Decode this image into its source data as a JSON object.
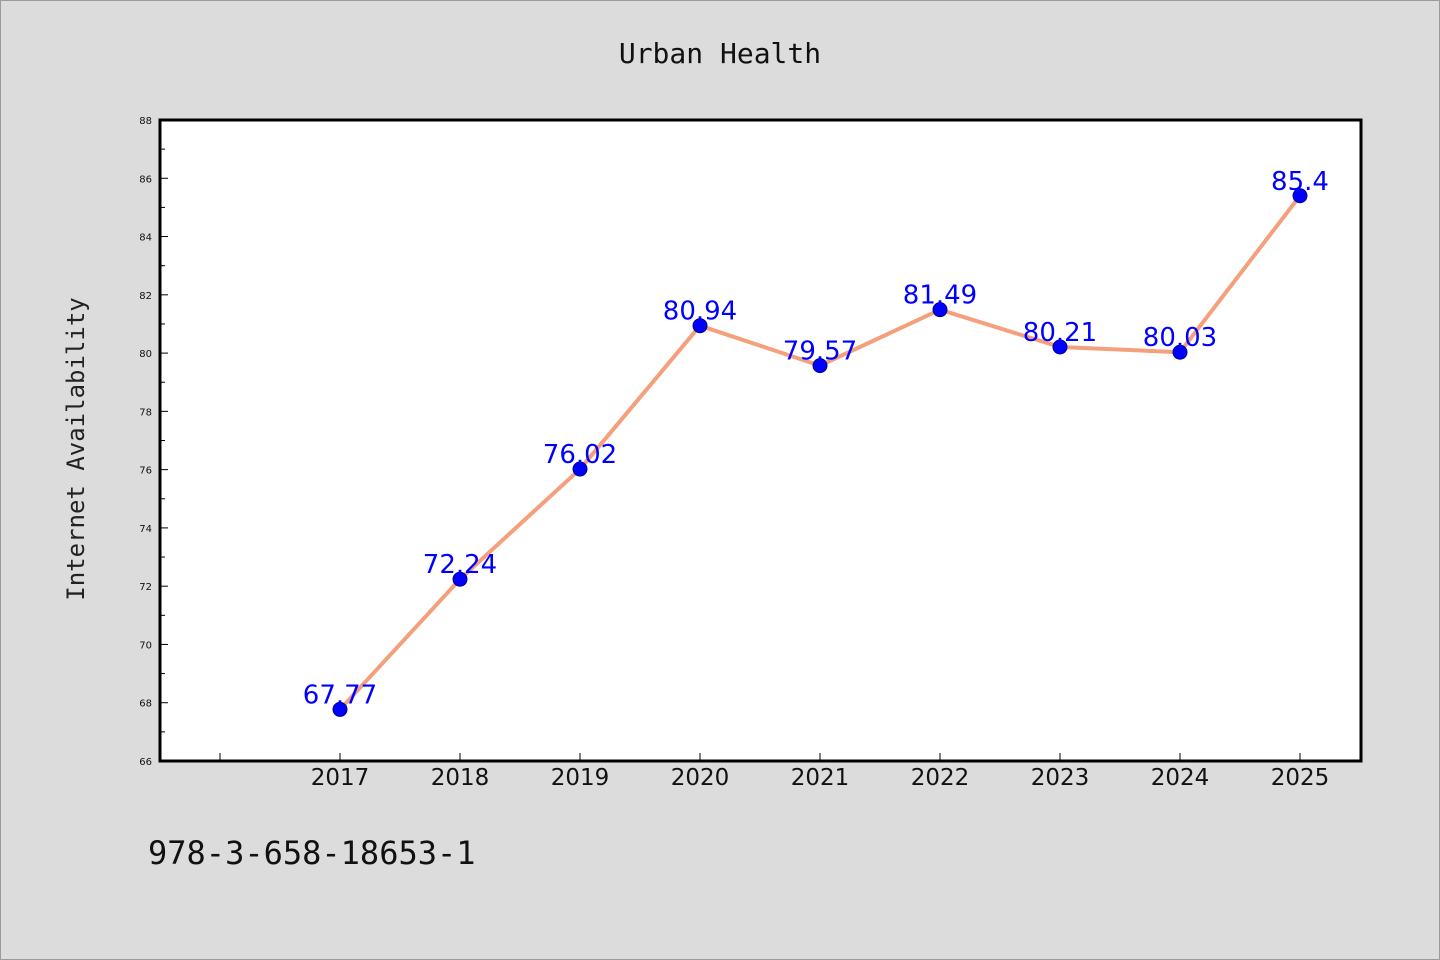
{
  "footer_code": "978-3-658-18653-1",
  "colors": {
    "background": "#dcdcdc",
    "plot_background": "#ffffff",
    "line": "#f4a07c",
    "marker": "#0000ff",
    "data_label": "#0000ff"
  },
  "chart_data": {
    "type": "line",
    "title": "Urban Health",
    "xlabel": "",
    "ylabel": "Internet Availability",
    "x": [
      "2017",
      "2018",
      "2019",
      "2020",
      "2021",
      "2022",
      "2023",
      "2024",
      "2025"
    ],
    "series": [
      {
        "values": [
          67.77,
          72.24,
          76.02,
          80.94,
          79.57,
          81.49,
          80.21,
          80.03,
          85.4
        ],
        "labels": [
          "67.77",
          "72.24",
          "76.02",
          "80.94",
          "79.57",
          "81.49",
          "80.21",
          "80.03",
          "85.4"
        ]
      }
    ],
    "ylim": [
      66,
      88
    ],
    "yticks": [
      "66",
      "68",
      "70",
      "72",
      "74",
      "76",
      "78",
      "80",
      "82",
      "84",
      "86",
      "88"
    ],
    "grid": false,
    "legend": "none"
  }
}
